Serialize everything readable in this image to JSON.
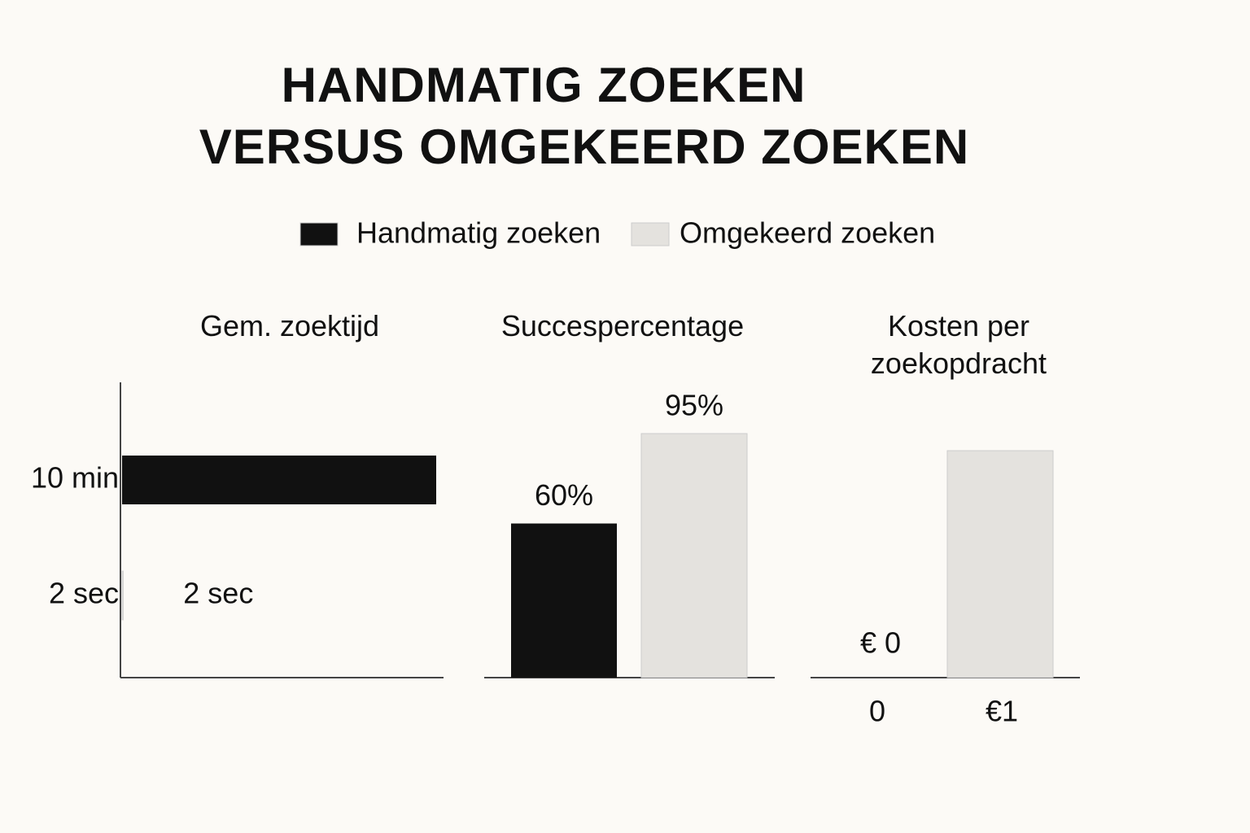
{
  "title": [
    "HANDMATIG ZOEKEN",
    "VERSUS OMGEKEERD ZOEKEN"
  ],
  "legend": [
    {
      "name": "Handmatig zoeken",
      "color": "#111111"
    },
    {
      "name": "Omgekeerd zoeken",
      "color": "#e4e2de"
    }
  ],
  "chart_data": [
    {
      "type": "hbar",
      "title": "Gem. zoektijd",
      "categories": [
        "10 min",
        "2 sec"
      ],
      "values": [
        600,
        2
      ],
      "value_labels": [
        null,
        "2 sec"
      ],
      "colors": [
        "#111111",
        "#e4e2de"
      ]
    },
    {
      "type": "bar",
      "title": "Succespercentage",
      "values": [
        60,
        95
      ],
      "value_labels": [
        "60%",
        "95%"
      ],
      "colors": [
        "#111111",
        "#e4e2de"
      ]
    },
    {
      "type": "bar",
      "title": "Kosten per zoekopdracht",
      "categories": [
        "0",
        "€1"
      ],
      "values": [
        0,
        1
      ],
      "value_labels": [
        "€ 0",
        null
      ],
      "colors": [
        "#111111",
        "#e4e2de"
      ]
    }
  ]
}
